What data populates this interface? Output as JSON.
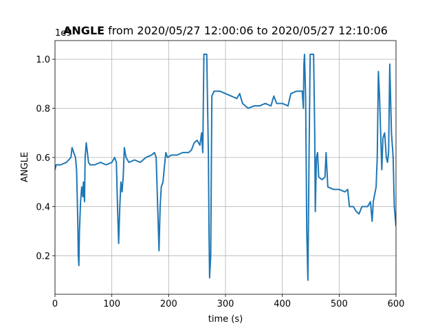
{
  "chart_data": {
    "type": "line",
    "title_bold": "ANGLE",
    "title": "from 2020/05/27 12:00:06 to 2020/05/27 12:10:06",
    "offset_text": "1e9",
    "xlabel": "time (s)",
    "ylabel": "ANGLE",
    "color": "#1f77b4",
    "grid": true,
    "xlim": [
      0,
      600
    ],
    "xticks": [
      0,
      100,
      200,
      300,
      400,
      500,
      600
    ],
    "ylim": [
      0.043,
      1.076
    ],
    "yticks": [
      0.2,
      0.4,
      0.6,
      0.8,
      {
        "value": 1,
        "label": "1.0"
      }
    ],
    "x": [
      0,
      2,
      10,
      20,
      28,
      30,
      33,
      36,
      38,
      40,
      41,
      42,
      43,
      45,
      47,
      49,
      50,
      52,
      53,
      55,
      57,
      59,
      62,
      70,
      80,
      90,
      100,
      105,
      108,
      110,
      112,
      114,
      116,
      118,
      120,
      122,
      125,
      130,
      140,
      150,
      160,
      170,
      175,
      178,
      180,
      183,
      185,
      187,
      190,
      192,
      195,
      198,
      205,
      215,
      225,
      235,
      240,
      245,
      250,
      255,
      258,
      260,
      262,
      267,
      270,
      271,
      272,
      274,
      276,
      280,
      290,
      300,
      310,
      320,
      325,
      330,
      340,
      350,
      360,
      370,
      380,
      385,
      390,
      400,
      410,
      415,
      425,
      435,
      437,
      438,
      439,
      441,
      443,
      445,
      447,
      449,
      455,
      457,
      458,
      460,
      462,
      464,
      470,
      475,
      477,
      480,
      490,
      500,
      510,
      515,
      518,
      525,
      530,
      535,
      540,
      550,
      555,
      558,
      560,
      565,
      567,
      569,
      571,
      573,
      575,
      577,
      580,
      583,
      585,
      587,
      589,
      592,
      595,
      597,
      600
    ],
    "values": [
      0.55,
      0.57,
      0.57,
      0.58,
      0.6,
      0.64,
      0.62,
      0.6,
      0.55,
      0.35,
      0.2,
      0.16,
      0.3,
      0.42,
      0.48,
      0.44,
      0.5,
      0.42,
      0.6,
      0.66,
      0.62,
      0.58,
      0.57,
      0.57,
      0.58,
      0.57,
      0.58,
      0.6,
      0.58,
      0.4,
      0.25,
      0.4,
      0.5,
      0.46,
      0.52,
      0.64,
      0.6,
      0.58,
      0.59,
      0.58,
      0.6,
      0.61,
      0.62,
      0.6,
      0.45,
      0.22,
      0.4,
      0.48,
      0.5,
      0.55,
      0.62,
      0.6,
      0.61,
      0.61,
      0.62,
      0.62,
      0.63,
      0.66,
      0.67,
      0.65,
      0.7,
      0.62,
      1.02,
      1.02,
      0.6,
      0.3,
      0.11,
      0.2,
      0.85,
      0.87,
      0.87,
      0.86,
      0.85,
      0.84,
      0.86,
      0.82,
      0.8,
      0.81,
      0.81,
      0.82,
      0.81,
      0.85,
      0.82,
      0.82,
      0.81,
      0.86,
      0.87,
      0.87,
      0.8,
      0.98,
      1.02,
      0.85,
      0.3,
      0.1,
      0.6,
      1.02,
      1.02,
      0.7,
      0.38,
      0.6,
      0.62,
      0.52,
      0.51,
      0.52,
      0.62,
      0.48,
      0.47,
      0.47,
      0.46,
      0.47,
      0.4,
      0.4,
      0.38,
      0.37,
      0.4,
      0.4,
      0.42,
      0.34,
      0.42,
      0.48,
      0.6,
      0.95,
      0.85,
      0.7,
      0.55,
      0.68,
      0.7,
      0.6,
      0.58,
      0.62,
      0.98,
      0.7,
      0.6,
      0.4,
      0.32
    ]
  }
}
